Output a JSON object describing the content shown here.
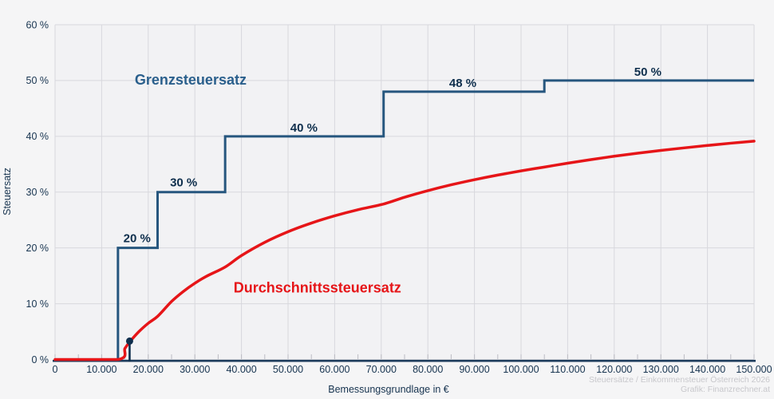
{
  "page": {
    "background": "#f5f5f6"
  },
  "axes": {
    "y_title": "Steuersatz",
    "x_title": "Bemessungsgrundlage in €"
  },
  "caption": {
    "line1": "Steuersätze / Einkommensteuer Österreich 2026",
    "line2": "Grafik: Finanzrechner.at"
  },
  "chart_data": {
    "type": "line",
    "title": "",
    "xlabel": "Bemessungsgrundlage in €",
    "ylabel": "Steuersatz",
    "xlim": [
      0,
      150000
    ],
    "ylim": [
      0,
      60
    ],
    "grid": true,
    "x_tick_step": 10000,
    "y_tick_step": 10,
    "x_minor_tick_step": 5000,
    "x_tick_labels": [
      "0",
      "10.000",
      "20.000",
      "30.000",
      "40.000",
      "50.000",
      "60.000",
      "70.000",
      "80.000",
      "90.000",
      "100.000",
      "110.000",
      "120.000",
      "130.000",
      "140.000",
      "150.000"
    ],
    "y_tick_labels": [
      "0 %",
      "10 %",
      "20 %",
      "30 %",
      "40 %",
      "50 %",
      "60 %"
    ],
    "colors": {
      "plot_bg": "#f2f2f4",
      "grid": "#d8d8dd",
      "minor_tick": "#bcbcc3",
      "axis": "#1d3c5c",
      "tick_text": "#16334f"
    },
    "series": [
      {
        "name": "Grenzsteuersatz",
        "type": "step",
        "color": "#26567e",
        "width": 3,
        "label_color": "#0f2f4d",
        "brackets": [
          {
            "threshold": 13500,
            "rate": 0
          },
          {
            "threshold": 22000,
            "rate": 20
          },
          {
            "threshold": 36500,
            "rate": 30
          },
          {
            "threshold": 70500,
            "rate": 40
          },
          {
            "threshold": 105000,
            "rate": 48
          },
          {
            "threshold": 150000,
            "rate": 50
          }
        ],
        "rate_labels": [
          {
            "text": "20 %",
            "x": 17600,
            "y": 21.8
          },
          {
            "text": "30 %",
            "x": 27600,
            "y": 31.8
          },
          {
            "text": "40 %",
            "x": 53400,
            "y": 41.6
          },
          {
            "text": "48 %",
            "x": 87500,
            "y": 49.6
          },
          {
            "text": "50 %",
            "x": 127200,
            "y": 51.6
          }
        ],
        "label": {
          "text": "Grenzsteuersatz",
          "x": 29100,
          "y": 50.2,
          "color": "#2a5f8c",
          "size": 18
        }
      },
      {
        "name": "Durchschnittssteuersatz",
        "type": "curve",
        "color": "#e61518",
        "width": 3.5,
        "points": [
          [
            0,
            0
          ],
          [
            13500,
            0
          ],
          [
            15000,
            2.0
          ],
          [
            16000,
            3.13
          ],
          [
            18000,
            5.0
          ],
          [
            20000,
            6.5
          ],
          [
            22000,
            7.73
          ],
          [
            25000,
            10.4
          ],
          [
            27500,
            12.18
          ],
          [
            30000,
            13.67
          ],
          [
            32500,
            14.92
          ],
          [
            36500,
            16.58
          ],
          [
            40000,
            18.63
          ],
          [
            45000,
            21.0
          ],
          [
            50000,
            22.9
          ],
          [
            55000,
            24.45
          ],
          [
            60000,
            25.75
          ],
          [
            65000,
            26.85
          ],
          [
            70500,
            27.87
          ],
          [
            75000,
            29.08
          ],
          [
            80000,
            30.26
          ],
          [
            85000,
            31.31
          ],
          [
            90000,
            32.23
          ],
          [
            95000,
            33.06
          ],
          [
            100000,
            33.81
          ],
          [
            105000,
            34.49
          ],
          [
            110000,
            35.19
          ],
          [
            115000,
            35.83
          ],
          [
            120000,
            36.43
          ],
          [
            125000,
            36.97
          ],
          [
            130000,
            37.47
          ],
          [
            135000,
            37.93
          ],
          [
            140000,
            38.36
          ],
          [
            145000,
            38.77
          ],
          [
            150000,
            39.14
          ]
        ],
        "label": {
          "text": "Durchschnittssteuersatz",
          "x": 56300,
          "y": 12.9,
          "color": "#e61518",
          "size": 18
        }
      }
    ],
    "highlight_marker": {
      "x": 16000,
      "y": 3.3,
      "color": "#0f2f4d",
      "radius": 4.5,
      "stem": true
    }
  }
}
